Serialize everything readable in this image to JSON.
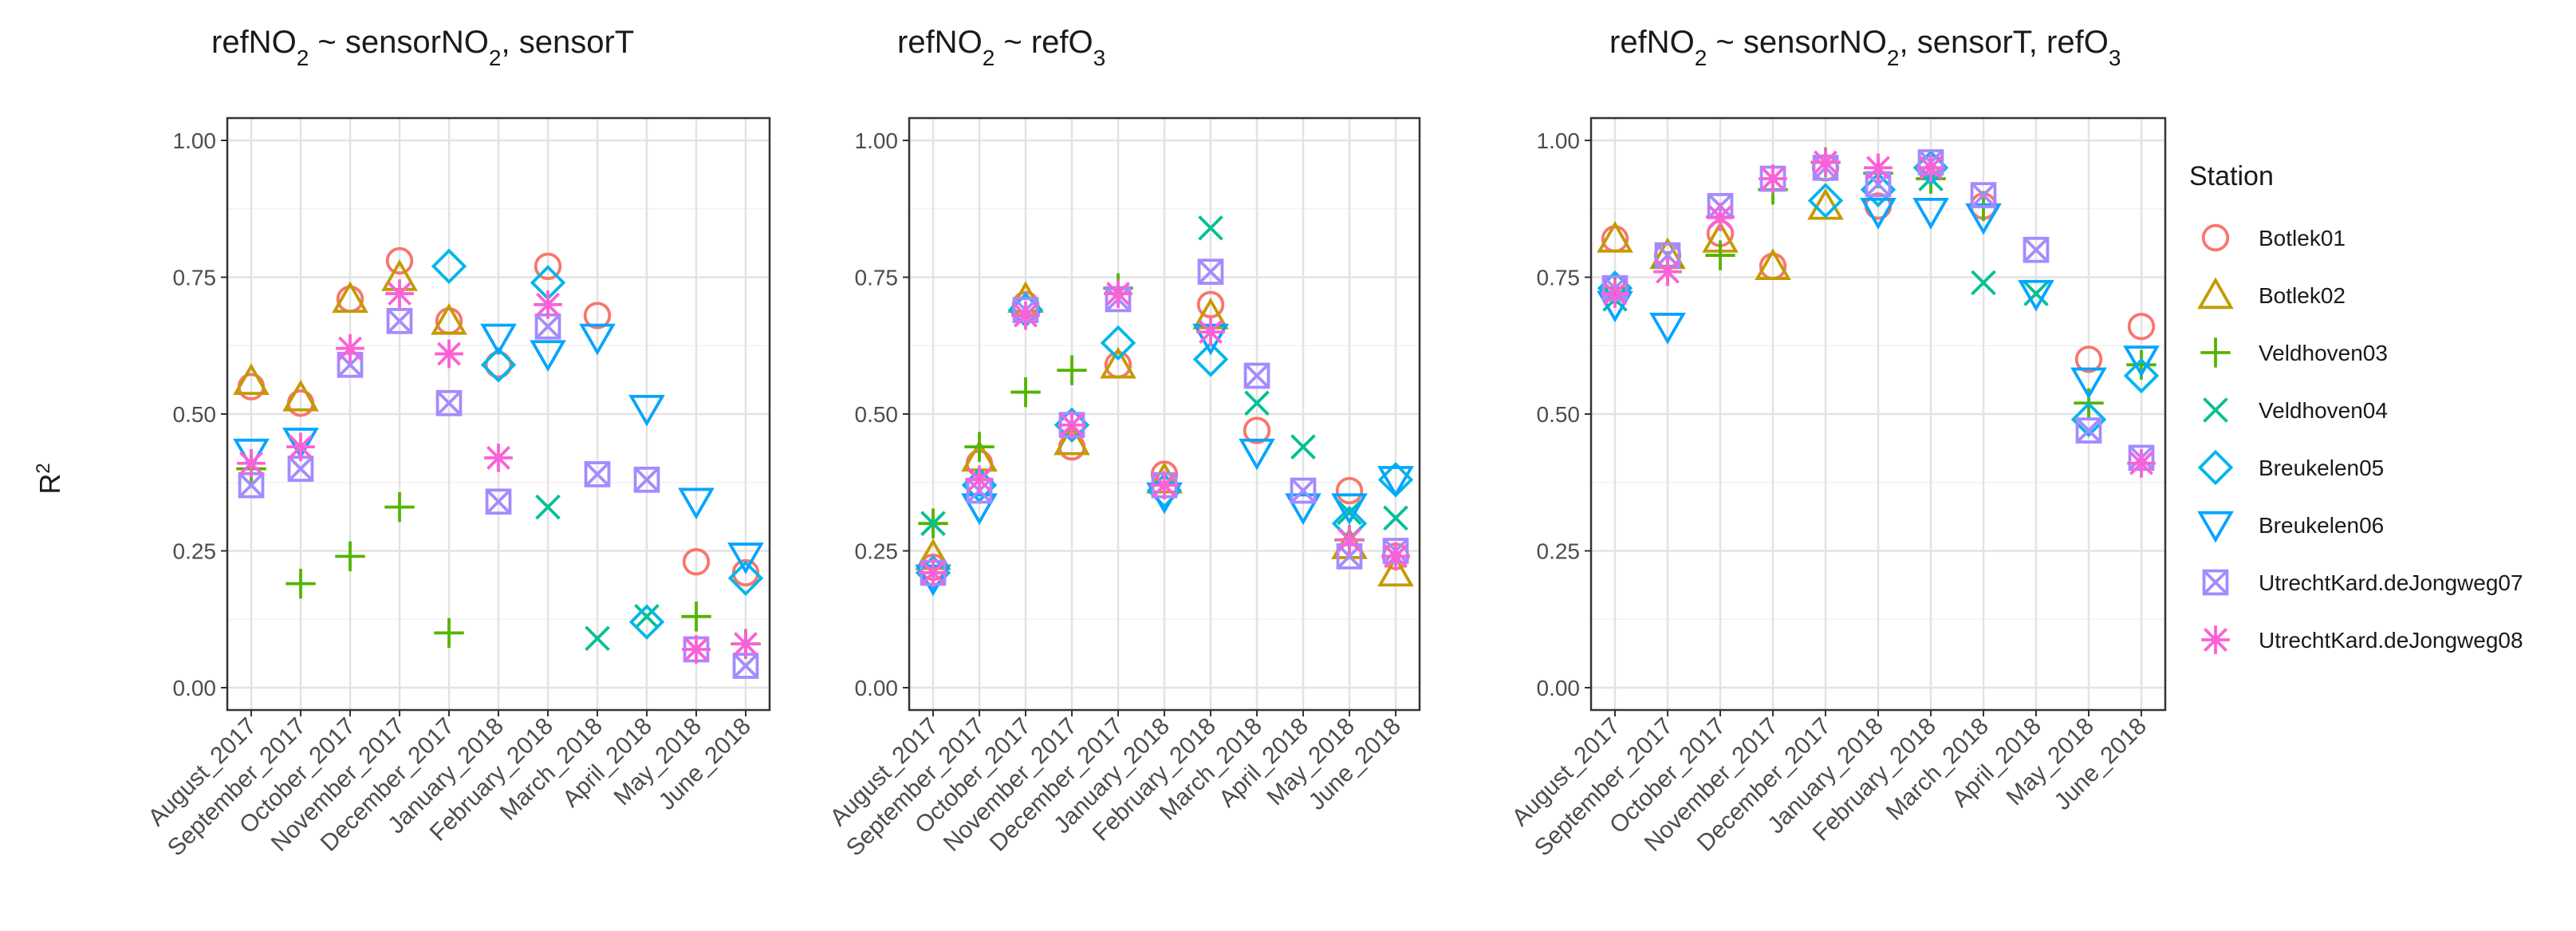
{
  "figure": {
    "ylabel": "R",
    "ylabel_sup": "2",
    "legend_title": "Station"
  },
  "months": [
    "August_2017",
    "September_2017",
    "October_2017",
    "November_2017",
    "December_2017",
    "January_2018",
    "February_2018",
    "March_2018",
    "April_2018",
    "May_2018",
    "June_2018"
  ],
  "y_ticks": [
    "0.00",
    "0.25",
    "0.50",
    "0.75",
    "1.00"
  ],
  "stations": [
    {
      "name": "Botlek01",
      "color": "#F8766D",
      "shape": "circle"
    },
    {
      "name": "Botlek02",
      "color": "#C49A00",
      "shape": "triangle-up"
    },
    {
      "name": "Veldhoven03",
      "color": "#53B400",
      "shape": "plus"
    },
    {
      "name": "Veldhoven04",
      "color": "#00C094",
      "shape": "cross"
    },
    {
      "name": "Breukelen05",
      "color": "#00B6EB",
      "shape": "diamond"
    },
    {
      "name": "Breukelen06",
      "color": "#06A4FF",
      "shape": "triangle-down"
    },
    {
      "name": "UtrechtKard.deJongweg07",
      "color": "#A58AFF",
      "shape": "square-x"
    },
    {
      "name": "UtrechtKard.deJongweg08",
      "color": "#FB61D7",
      "shape": "asterisk"
    }
  ],
  "chart_data": [
    {
      "type": "scatter",
      "title": "refNO2 ~ sensorNO2,  sensorT",
      "title_parts": [
        "refNO",
        "2",
        " ~ sensorNO",
        "2",
        ",  sensorT"
      ],
      "xlabel": "",
      "ylabel": "R2",
      "ylim": [
        0,
        1
      ],
      "x": [
        "August_2017",
        "September_2017",
        "October_2017",
        "November_2017",
        "December_2017",
        "January_2018",
        "February_2018",
        "March_2018",
        "April_2018",
        "May_2018",
        "June_2018"
      ],
      "series": [
        {
          "name": "Botlek01",
          "values": [
            0.55,
            0.52,
            0.71,
            0.78,
            0.67,
            0.59,
            0.77,
            0.68,
            null,
            0.23,
            0.21
          ]
        },
        {
          "name": "Botlek02",
          "values": [
            0.56,
            0.53,
            0.71,
            0.75,
            0.67,
            null,
            null,
            null,
            null,
            null,
            null
          ]
        },
        {
          "name": "Veldhoven03",
          "values": [
            0.4,
            0.19,
            0.24,
            0.33,
            0.1,
            null,
            null,
            null,
            null,
            0.13,
            0.08
          ]
        },
        {
          "name": "Veldhoven04",
          "values": [
            null,
            null,
            null,
            null,
            null,
            null,
            0.33,
            0.09,
            0.13,
            null,
            null
          ]
        },
        {
          "name": "Breukelen05",
          "values": [
            null,
            null,
            null,
            null,
            0.77,
            0.59,
            0.74,
            null,
            0.12,
            null,
            0.2
          ]
        },
        {
          "name": "Breukelen06",
          "values": [
            0.43,
            0.45,
            null,
            null,
            null,
            0.64,
            0.61,
            0.64,
            0.51,
            0.34,
            0.24
          ]
        },
        {
          "name": "UtrechtKard.deJongweg07",
          "values": [
            0.37,
            0.4,
            0.59,
            0.67,
            0.52,
            0.34,
            0.66,
            0.39,
            0.38,
            0.07,
            0.04
          ]
        },
        {
          "name": "UtrechtKard.deJongweg08",
          "values": [
            0.41,
            0.44,
            0.62,
            0.72,
            0.61,
            0.42,
            0.7,
            null,
            null,
            0.07,
            0.08
          ]
        }
      ]
    },
    {
      "type": "scatter",
      "title": "refNO2 ~  refO3",
      "title_parts": [
        "refNO",
        "2",
        " ~  refO",
        "3",
        ""
      ],
      "xlabel": "",
      "ylabel": "R2",
      "ylim": [
        0,
        1
      ],
      "x": [
        "August_2017",
        "September_2017",
        "October_2017",
        "November_2017",
        "December_2017",
        "January_2018",
        "February_2018",
        "March_2018",
        "April_2018",
        "May_2018",
        "June_2018"
      ],
      "series": [
        {
          "name": "Botlek01",
          "values": [
            0.22,
            0.41,
            0.7,
            0.44,
            0.59,
            0.39,
            0.7,
            0.47,
            null,
            0.36,
            0.24
          ]
        },
        {
          "name": "Botlek02",
          "values": [
            0.24,
            0.42,
            0.71,
            0.45,
            0.59,
            0.38,
            0.68,
            null,
            null,
            0.26,
            0.21
          ]
        },
        {
          "name": "Veldhoven03",
          "values": [
            0.3,
            0.44,
            0.54,
            0.58,
            0.73,
            null,
            null,
            null,
            null,
            0.27,
            null
          ]
        },
        {
          "name": "Veldhoven04",
          "values": [
            0.3,
            null,
            null,
            null,
            null,
            null,
            0.84,
            0.52,
            0.44,
            0.32,
            0.31
          ]
        },
        {
          "name": "Breukelen05",
          "values": [
            0.21,
            0.37,
            0.69,
            0.48,
            0.63,
            0.36,
            0.6,
            null,
            null,
            0.3,
            0.38
          ]
        },
        {
          "name": "Breukelen06",
          "values": [
            0.2,
            0.33,
            null,
            null,
            null,
            0.35,
            0.64,
            0.43,
            0.33,
            0.33,
            0.38
          ]
        },
        {
          "name": "UtrechtKard.deJongweg07",
          "values": [
            0.21,
            0.36,
            0.69,
            0.48,
            0.71,
            0.37,
            0.76,
            0.57,
            0.36,
            0.24,
            0.25
          ]
        },
        {
          "name": "UtrechtKard.deJongweg08",
          "values": [
            0.21,
            0.38,
            0.68,
            0.48,
            0.72,
            0.37,
            0.65,
            null,
            null,
            0.27,
            0.24
          ]
        }
      ]
    },
    {
      "type": "scatter",
      "title": "refNO2 ~ sensorNO2, sensorT, refO3",
      "title_parts": [
        "refNO",
        "2",
        " ~ sensorNO",
        "2",
        ", sensorT, refO",
        "3"
      ],
      "xlabel": "",
      "ylabel": "R2",
      "ylim": [
        0,
        1
      ],
      "x": [
        "August_2017",
        "September_2017",
        "October_2017",
        "November_2017",
        "December_2017",
        "January_2018",
        "February_2018",
        "March_2018",
        "April_2018",
        "May_2018",
        "June_2018"
      ],
      "series": [
        {
          "name": "Botlek01",
          "values": [
            0.82,
            0.79,
            0.83,
            0.77,
            0.95,
            0.88,
            0.95,
            0.88,
            null,
            0.6,
            0.66
          ]
        },
        {
          "name": "Botlek02",
          "values": [
            0.82,
            0.79,
            0.82,
            0.77,
            0.88,
            null,
            null,
            null,
            null,
            null,
            null
          ]
        },
        {
          "name": "Veldhoven03",
          "values": [
            0.73,
            0.77,
            0.79,
            0.91,
            0.96,
            0.94,
            0.93,
            0.88,
            null,
            0.52,
            0.59
          ]
        },
        {
          "name": "Veldhoven04",
          "values": [
            0.71,
            null,
            null,
            null,
            null,
            null,
            0.93,
            0.74,
            0.72,
            null,
            null
          ]
        },
        {
          "name": "Breukelen05",
          "values": [
            0.73,
            null,
            null,
            null,
            0.89,
            0.91,
            0.95,
            null,
            null,
            0.49,
            0.57
          ]
        },
        {
          "name": "Breukelen06",
          "values": [
            0.7,
            0.66,
            null,
            null,
            null,
            0.87,
            0.87,
            0.86,
            0.72,
            0.56,
            0.6
          ]
        },
        {
          "name": "UtrechtKard.deJongweg07",
          "values": [
            0.73,
            0.79,
            0.88,
            0.93,
            0.95,
            0.92,
            0.96,
            0.9,
            0.8,
            0.47,
            0.42
          ]
        },
        {
          "name": "UtrechtKard.deJongweg08",
          "values": [
            0.72,
            0.76,
            0.86,
            0.93,
            0.96,
            0.95,
            0.95,
            null,
            null,
            null,
            0.41
          ]
        }
      ]
    }
  ]
}
